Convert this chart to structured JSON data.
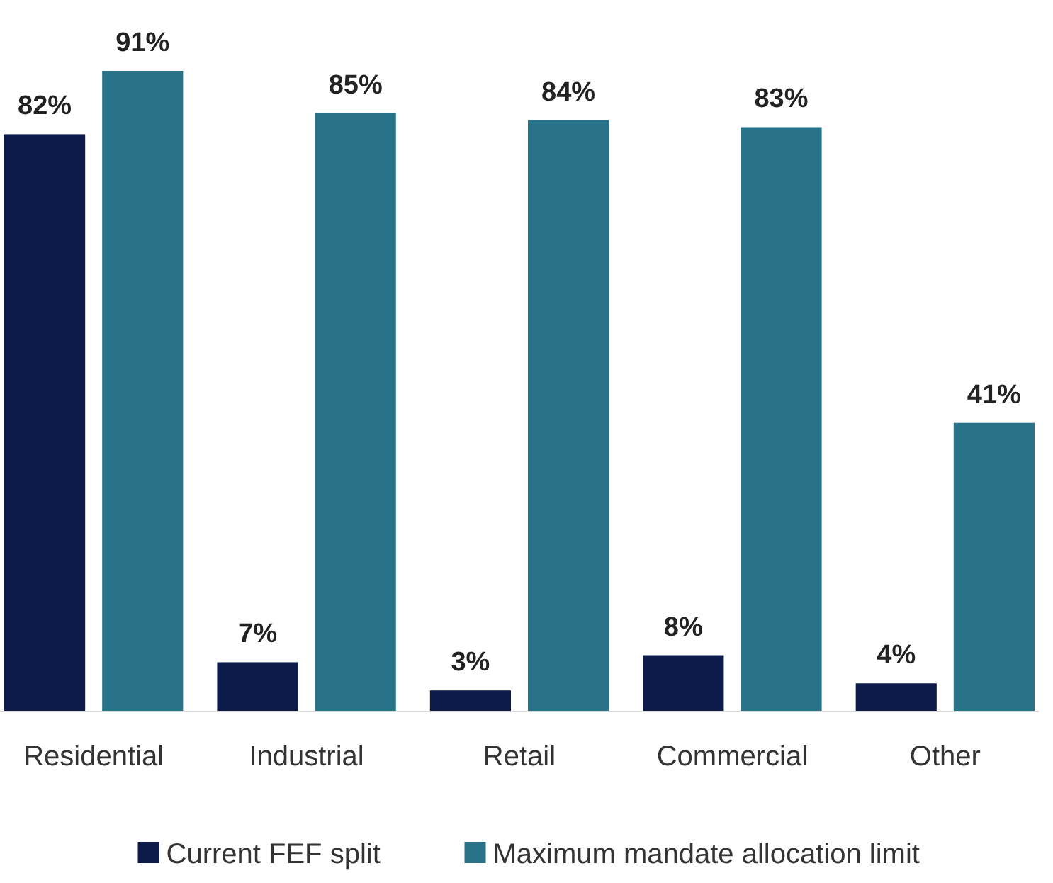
{
  "chart_data": {
    "type": "bar",
    "categories": [
      "Residential",
      "Industrial",
      "Retail",
      "Commercial",
      "Other"
    ],
    "series": [
      {
        "name": "Current FEF split",
        "color": "#0c1b4a",
        "values": [
          82,
          7,
          3,
          8,
          4
        ],
        "value_labels": [
          "82%",
          "7%",
          "3%",
          "8%",
          "4%"
        ]
      },
      {
        "name": "Maximum mandate allocation limit",
        "color": "#287389",
        "values": [
          91,
          85,
          84,
          83,
          41
        ],
        "value_labels": [
          "91%",
          "85%",
          "84%",
          "83%",
          "41%"
        ]
      }
    ],
    "legend": "bottom"
  }
}
